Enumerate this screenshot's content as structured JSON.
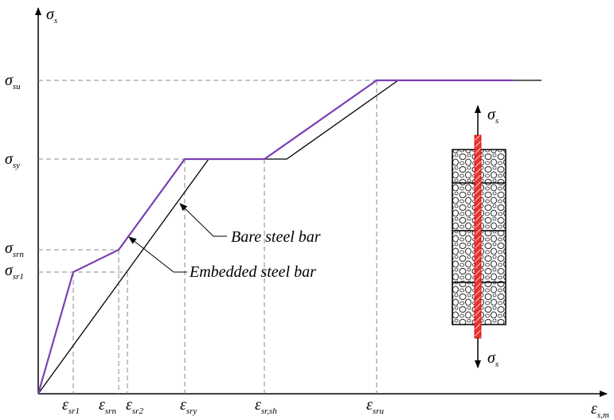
{
  "axes": {
    "y_label": {
      "symbol": "σ",
      "sub": "s"
    },
    "x_label": {
      "symbol": "ε",
      "sub": "s,m"
    }
  },
  "y_levels": [
    {
      "symbol": "σ",
      "sub": "su"
    },
    {
      "symbol": "σ",
      "sub": "sy"
    },
    {
      "symbol": "σ",
      "sub": "srn"
    },
    {
      "symbol": "σ",
      "sub": "sr1"
    }
  ],
  "x_levels": [
    {
      "symbol": "ε",
      "sub": "sr1"
    },
    {
      "symbol": "ε",
      "sub": "srn"
    },
    {
      "symbol": "ε",
      "sub": "sr2"
    },
    {
      "symbol": "ε",
      "sub": "sry"
    },
    {
      "symbol": "ε",
      "sub": "sr,sh"
    },
    {
      "symbol": "ε",
      "sub": "sru"
    }
  ],
  "annotations": [
    "Bare steel bar",
    "Embedded steel bar"
  ],
  "specimen": {
    "top_label": {
      "symbol": "σ",
      "sub": "s"
    },
    "bottom_label": {
      "symbol": "σ",
      "sub": "s"
    }
  }
}
